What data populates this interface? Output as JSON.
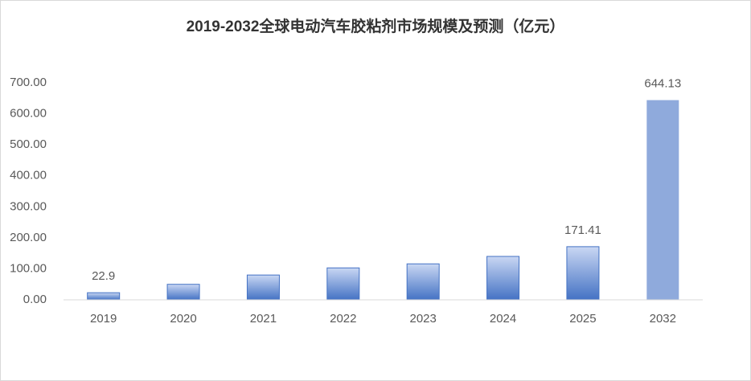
{
  "chart_data": {
    "type": "bar",
    "title": "2019-2032全球电动汽车胶粘剂市场规模及预测（亿元）",
    "categories": [
      "2019",
      "2020",
      "2021",
      "2022",
      "2023",
      "2024",
      "2025",
      "2032"
    ],
    "values": [
      22.9,
      50,
      80,
      103,
      116,
      140,
      171.41,
      644.13
    ],
    "value_labels": [
      "22.9",
      null,
      null,
      null,
      null,
      null,
      "171.41",
      "644.13"
    ],
    "colors": [
      "#4472c4",
      "#4472c4",
      "#4472c4",
      "#4472c4",
      "#4472c4",
      "#4472c4",
      "#4472c4",
      "#8faadc"
    ],
    "ylim": [
      0,
      700
    ],
    "yticks": [
      {
        "value": 0,
        "label": "0.00"
      },
      {
        "value": 100,
        "label": "100.00"
      },
      {
        "value": 200,
        "label": "200.00"
      },
      {
        "value": 300,
        "label": "300.00"
      },
      {
        "value": 400,
        "label": "400.00"
      },
      {
        "value": 500,
        "label": "500.00"
      },
      {
        "value": 600,
        "label": "600.00"
      },
      {
        "value": 700,
        "label": "700.00"
      }
    ],
    "grid": false
  }
}
